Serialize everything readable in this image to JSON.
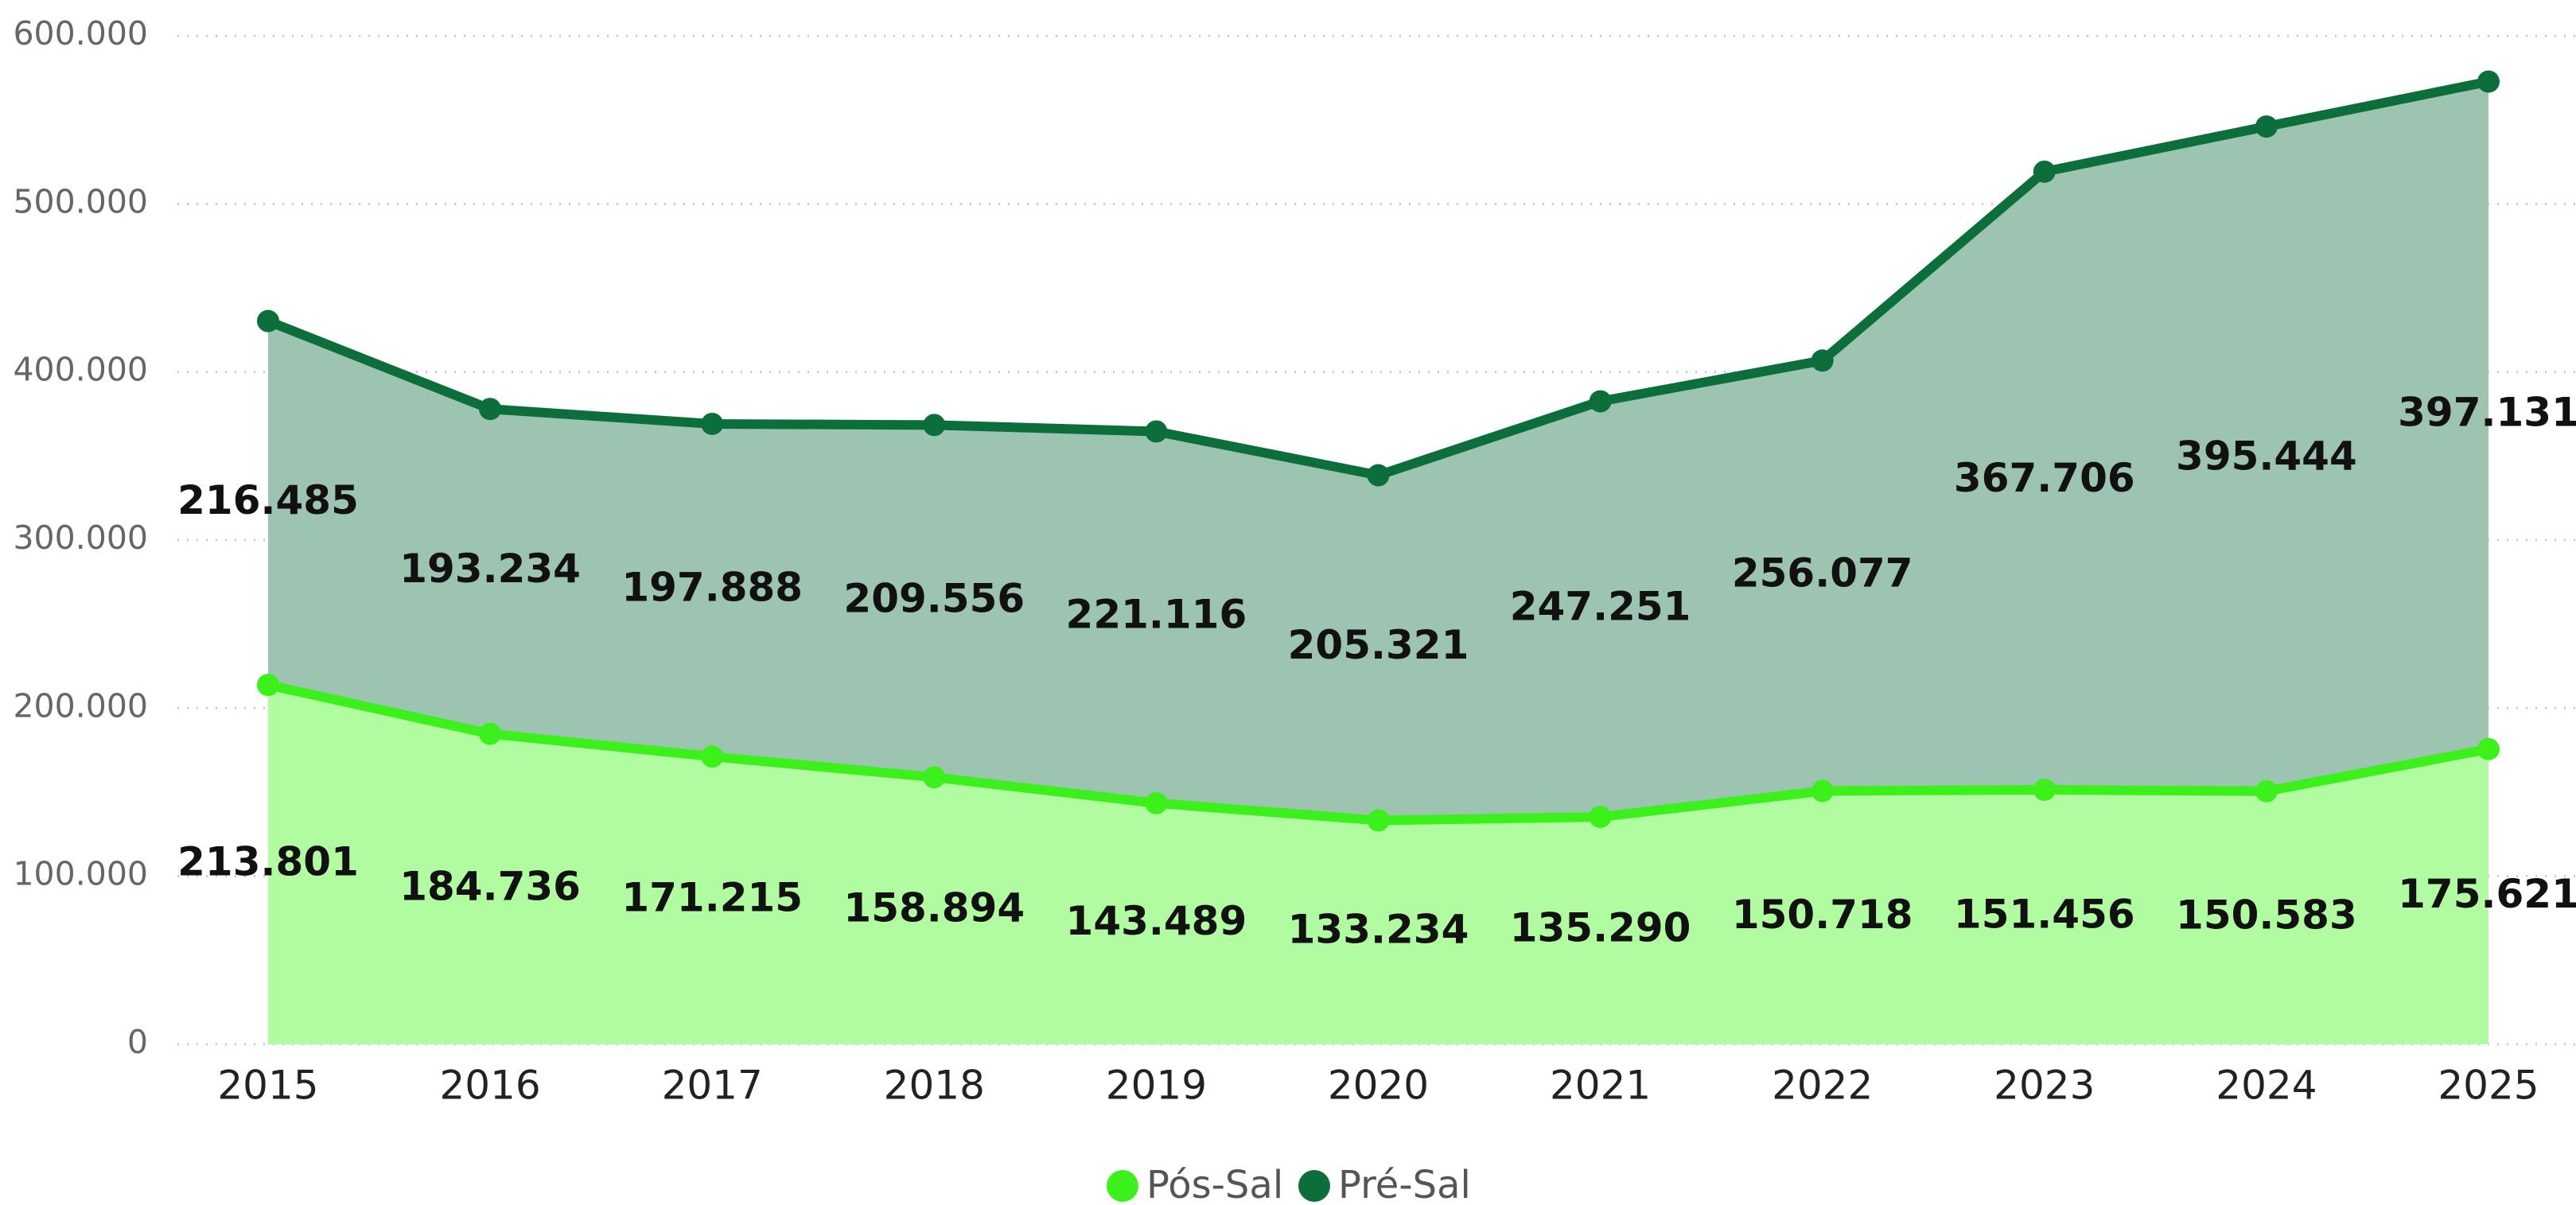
{
  "chart_data": {
    "type": "stacked_area",
    "categories": [
      "2015",
      "2016",
      "2017",
      "2018",
      "2019",
      "2020",
      "2021",
      "2022",
      "2023",
      "2024",
      "2025"
    ],
    "series": [
      {
        "name": "Pós-Sal",
        "color": "#3cf01c",
        "area_color": "#b1fca1",
        "values": [
          213801,
          184736,
          171215,
          158894,
          143489,
          133234,
          135290,
          150718,
          151456,
          150583,
          175621
        ],
        "value_labels": [
          "213.801",
          "184.736",
          "171.215",
          "158.894",
          "143.489",
          "133.234",
          "135.290",
          "150.718",
          "151.456",
          "150.583",
          "175.621"
        ]
      },
      {
        "name": "Pré-Sal",
        "color": "#0c6f3b",
        "area_color": "#9cc4b0",
        "values": [
          216485,
          193234,
          197888,
          209556,
          221116,
          205321,
          247251,
          256077,
          367706,
          395444,
          397131
        ],
        "value_labels": [
          "216.485",
          "193.234",
          "197.888",
          "209.556",
          "221.116",
          "205.321",
          "247.251",
          "256.077",
          "367.706",
          "395.444",
          "397.131"
        ]
      }
    ],
    "ylim": [
      0,
      600000
    ],
    "yticks": [
      0,
      {
        "value": 100000,
        "label": "100.000"
      },
      {
        "value": 200000,
        "label": "200.000"
      },
      {
        "value": 300000,
        "label": "300.000"
      },
      {
        "value": 400000,
        "label": "400.000"
      },
      {
        "value": 500000,
        "label": "500.000"
      },
      {
        "value": 600000,
        "label": "600.000"
      }
    ],
    "grid": true,
    "legend": "bottom"
  }
}
